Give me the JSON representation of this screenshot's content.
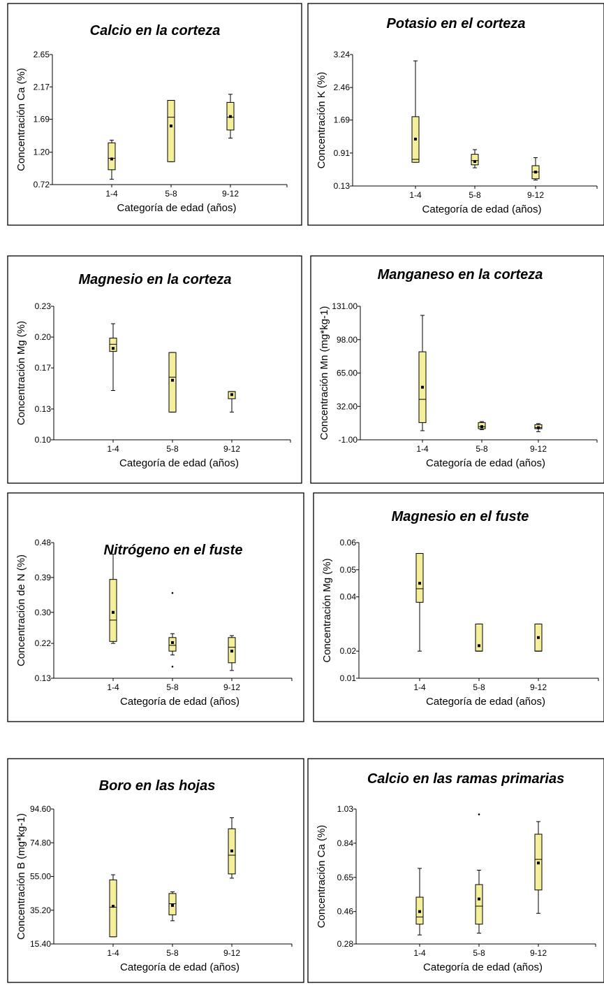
{
  "chart_data": [
    {
      "type": "box",
      "title": "Calcio en la corteza",
      "xlabel": "Categoría de edad (años)",
      "ylabel": "Concentración Ca (%)",
      "ylim": [
        0.72,
        2.65
      ],
      "yticks": [
        "0.72",
        "1.20",
        "1.69",
        "2.17",
        "2.65"
      ],
      "categories": [
        "1-4",
        "5-8",
        "9-12"
      ],
      "boxes": [
        {
          "whisker_low": 0.8,
          "q1": 0.94,
          "median": 1.11,
          "q3": 1.34,
          "whisker_high": 1.38,
          "mean": 1.1,
          "outliers": []
        },
        {
          "whisker_low": 1.06,
          "q1": 1.06,
          "median": 1.72,
          "q3": 1.97,
          "whisker_high": 1.97,
          "mean": 1.59,
          "outliers": []
        },
        {
          "whisker_low": 1.41,
          "q1": 1.53,
          "median": 1.72,
          "q3": 1.94,
          "whisker_high": 2.06,
          "mean": 1.73,
          "outliers": []
        }
      ]
    },
    {
      "type": "box",
      "title": "Potasio en el corteza",
      "xlabel": "Categoría de edad (años)",
      "ylabel": "Concentración K (%)",
      "ylim": [
        0.13,
        3.24
      ],
      "yticks": [
        "0.13",
        "0.91",
        "1.69",
        "2.46",
        "3.24"
      ],
      "categories": [
        "1-4",
        "5-8",
        "9-12"
      ],
      "boxes": [
        {
          "whisker_low": 0.69,
          "q1": 0.69,
          "median": 0.76,
          "q3": 1.77,
          "whisker_high": 3.09,
          "mean": 1.24,
          "outliers": []
        },
        {
          "whisker_low": 0.56,
          "q1": 0.63,
          "median": 0.73,
          "q3": 0.88,
          "whisker_high": 0.99,
          "mean": 0.71,
          "outliers": []
        },
        {
          "whisker_low": 0.27,
          "q1": 0.3,
          "median": 0.46,
          "q3": 0.61,
          "whisker_high": 0.8,
          "mean": 0.46,
          "outliers": []
        }
      ]
    },
    {
      "type": "box",
      "title": "Magnesio en la corteza",
      "xlabel": "Categoría de edad (años)",
      "ylabel": "Concentración Mg (%)",
      "ylim": [
        0.1,
        0.23
      ],
      "yticks": [
        "0.10",
        "0.13",
        "0.17",
        "0.20",
        "0.23"
      ],
      "categories": [
        "1-4",
        "5-8",
        "9-12"
      ],
      "boxes": [
        {
          "whisker_low": 0.148,
          "q1": 0.186,
          "median": 0.193,
          "q3": 0.199,
          "whisker_high": 0.213,
          "mean": 0.189,
          "outliers": []
        },
        {
          "whisker_low": 0.127,
          "q1": 0.127,
          "median": 0.161,
          "q3": 0.185,
          "whisker_high": 0.185,
          "mean": 0.158,
          "outliers": []
        },
        {
          "whisker_low": 0.127,
          "q1": 0.14,
          "median": 0.147,
          "q3": 0.147,
          "whisker_high": 0.147,
          "mean": 0.144,
          "outliers": []
        }
      ]
    },
    {
      "type": "box",
      "title": "Manganeso en la corteza",
      "xlabel": "Categoría de edad (años)",
      "ylabel": "Concentración Mn (mg*kg-1)",
      "ylim": [
        -1.0,
        131.0
      ],
      "yticks": [
        "-1.00",
        "32.00",
        "65.00",
        "98.00",
        "131.00"
      ],
      "categories": [
        "1-4",
        "5-8",
        "9-12"
      ],
      "boxes": [
        {
          "whisker_low": 8,
          "q1": 16,
          "median": 39,
          "q3": 86,
          "whisker_high": 122,
          "mean": 51,
          "outliers": []
        },
        {
          "whisker_low": 9,
          "q1": 10,
          "median": 12,
          "q3": 16,
          "whisker_high": 17,
          "mean": 12,
          "outliers": []
        },
        {
          "whisker_low": 7,
          "q1": 10,
          "median": 11,
          "q3": 14,
          "whisker_high": 15,
          "mean": 11,
          "outliers": []
        }
      ]
    },
    {
      "type": "box",
      "title": "Nitrógeno en el fuste",
      "xlabel": "Categoría de edad (años)",
      "ylabel": "Concentración de N (%)",
      "ylim": [
        0.13,
        0.48
      ],
      "yticks": [
        "0.13",
        "0.22",
        "0.30",
        "0.39",
        "0.48"
      ],
      "categories": [
        "1-4",
        "5-8",
        "9-12"
      ],
      "boxes": [
        {
          "whisker_low": 0.22,
          "q1": 0.225,
          "median": 0.28,
          "q3": 0.385,
          "whisker_high": 0.45,
          "mean": 0.3,
          "outliers": []
        },
        {
          "whisker_low": 0.19,
          "q1": 0.2,
          "median": 0.215,
          "q3": 0.235,
          "whisker_high": 0.245,
          "mean": 0.222,
          "outliers": [
            0.35,
            0.16
          ]
        },
        {
          "whisker_low": 0.15,
          "q1": 0.17,
          "median": 0.21,
          "q3": 0.235,
          "whisker_high": 0.24,
          "mean": 0.2,
          "outliers": []
        }
      ]
    },
    {
      "type": "box",
      "title": "Magnesio en el fuste",
      "xlabel": "Categoría de edad (años)",
      "ylabel": "Concentración Mg (%)",
      "ylim": [
        0.01,
        0.06
      ],
      "yticks": [
        "0.01",
        "0.02",
        "0.04",
        "0.05",
        "0.06"
      ],
      "categories": [
        "1-4",
        "5-8",
        "9-12"
      ],
      "boxes": [
        {
          "whisker_low": 0.02,
          "q1": 0.038,
          "median": 0.043,
          "q3": 0.056,
          "whisker_high": 0.056,
          "mean": 0.045,
          "outliers": []
        },
        {
          "whisker_low": 0.02,
          "q1": 0.02,
          "median": 0.02,
          "q3": 0.03,
          "whisker_high": 0.03,
          "mean": 0.022,
          "outliers": []
        },
        {
          "whisker_low": 0.02,
          "q1": 0.02,
          "median": 0.02,
          "q3": 0.03,
          "whisker_high": 0.03,
          "mean": 0.025,
          "outliers": []
        }
      ]
    },
    {
      "type": "box",
      "title": "Boro en las hojas",
      "xlabel": "Categoría de edad (años)",
      "ylabel": "Concentración B (mg*kg-1)",
      "ylim": [
        15.4,
        94.6
      ],
      "yticks": [
        "15.40",
        "35.20",
        "55.00",
        "74.80",
        "94.60"
      ],
      "categories": [
        "1-4",
        "5-8",
        "9-12"
      ],
      "boxes": [
        {
          "whisker_low": 19.6,
          "q1": 19.6,
          "median": 37.0,
          "q3": 53.0,
          "whisker_high": 56.0,
          "mean": 37.5,
          "outliers": []
        },
        {
          "whisker_low": 29.0,
          "q1": 32.5,
          "median": 39.0,
          "q3": 45.0,
          "whisker_high": 46.0,
          "mean": 38.0,
          "outliers": []
        },
        {
          "whisker_low": 54.0,
          "q1": 56.5,
          "median": 67.5,
          "q3": 83.0,
          "whisker_high": 89.5,
          "mean": 70.0,
          "outliers": []
        }
      ]
    },
    {
      "type": "box",
      "title": "Calcio en las ramas primarias",
      "xlabel": "Categoría de edad (años)",
      "ylabel": "Concentración Ca (%)",
      "ylim": [
        0.28,
        1.03
      ],
      "yticks": [
        "0.28",
        "0.46",
        "0.65",
        "0.84",
        "1.03"
      ],
      "categories": [
        "1-4",
        "5-8",
        "9-12"
      ],
      "boxes": [
        {
          "whisker_low": 0.33,
          "q1": 0.39,
          "median": 0.43,
          "q3": 0.54,
          "whisker_high": 0.7,
          "mean": 0.46,
          "outliers": []
        },
        {
          "whisker_low": 0.34,
          "q1": 0.39,
          "median": 0.49,
          "q3": 0.61,
          "whisker_high": 0.69,
          "mean": 0.53,
          "outliers": [
            1.0
          ]
        },
        {
          "whisker_low": 0.45,
          "q1": 0.58,
          "median": 0.75,
          "q3": 0.89,
          "whisker_high": 0.96,
          "mean": 0.73,
          "outliers": []
        }
      ]
    }
  ]
}
